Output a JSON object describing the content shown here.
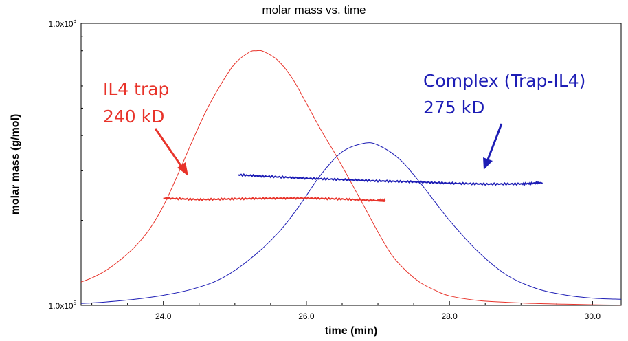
{
  "chart_data": {
    "type": "line",
    "title": "molar mass vs. time",
    "xlabel": "time (min)",
    "ylabel": "molar mass (g/mol)",
    "xlim": [
      22.85,
      30.4
    ],
    "ylim": [
      100000,
      1000000
    ],
    "y_scale": "log",
    "grid": false,
    "legend": "none",
    "x_ticks": [
      {
        "value": 24.0,
        "label": "24.0"
      },
      {
        "value": 26.0,
        "label": "26.0"
      },
      {
        "value": 28.0,
        "label": "28.0"
      },
      {
        "value": 30.0,
        "label": "30.0"
      }
    ],
    "y_ticks": [
      {
        "value": 100000,
        "mantissa": "1.0x10",
        "exp": "5"
      },
      {
        "value": 1000000,
        "mantissa": "1.0x10",
        "exp": "6"
      }
    ],
    "series": [
      {
        "color": "#e8332a",
        "style": "signal",
        "x": [
          22.85,
          23.0,
          23.2,
          23.4,
          23.6,
          23.8,
          24.0,
          24.2,
          24.4,
          24.6,
          24.8,
          25.0,
          25.2,
          25.3,
          25.4,
          25.6,
          25.8,
          26.0,
          26.2,
          26.4,
          26.6,
          26.8,
          27.0,
          27.2,
          27.4,
          27.6,
          27.8,
          28.0,
          28.4,
          28.8,
          29.2,
          29.6,
          30.0,
          30.4
        ],
        "y": [
          121000,
          125000,
          133000,
          145000,
          161000,
          185000,
          225000,
          290000,
          380000,
          490000,
          605000,
          720000,
          790000,
          800000,
          795000,
          740000,
          640000,
          520000,
          420000,
          345000,
          280000,
          226000,
          182000,
          150000,
          132000,
          120000,
          113000,
          108000,
          104000,
          102500,
          101500,
          101000,
          100500,
          100200
        ]
      },
      {
        "color": "#1d1db5",
        "style": "signal",
        "x": [
          22.85,
          23.2,
          23.6,
          24.0,
          24.4,
          24.8,
          25.2,
          25.6,
          25.9,
          26.2,
          26.5,
          26.8,
          27.0,
          27.3,
          27.6,
          28.0,
          28.4,
          28.8,
          29.2,
          29.6,
          30.0,
          30.4
        ],
        "y": [
          101500,
          102800,
          105000,
          108500,
          114000,
          124000,
          145000,
          180000,
          225000,
          290000,
          350000,
          375000,
          370000,
          330000,
          270000,
          200000,
          155000,
          128000,
          115000,
          109000,
          106000,
          105000
        ]
      },
      {
        "name": "IL4 trap",
        "color": "#e8332a",
        "style": "molar-mass",
        "x": [
          24.0,
          24.5,
          25.0,
          25.5,
          26.0,
          26.5,
          27.0,
          27.1
        ],
        "y": [
          240000,
          237000,
          238500,
          239500,
          240000,
          238000,
          235000,
          234000
        ]
      },
      {
        "name": "Complex (Trap-IL4)",
        "color": "#1d1db5",
        "style": "molar-mass",
        "x": [
          25.05,
          25.5,
          26.0,
          26.5,
          27.0,
          27.5,
          28.0,
          28.5,
          29.0,
          29.3
        ],
        "y": [
          290000,
          286000,
          282000,
          279000,
          276000,
          274000,
          271000,
          269000,
          269500,
          272000
        ]
      }
    ],
    "annotations": [
      {
        "lines": [
          "IL4 trap",
          "240 kD"
        ],
        "color": "#e8332a"
      },
      {
        "lines": [
          "Complex (Trap-IL4)",
          "275 kD"
        ],
        "color": "#1d1db5"
      }
    ]
  }
}
